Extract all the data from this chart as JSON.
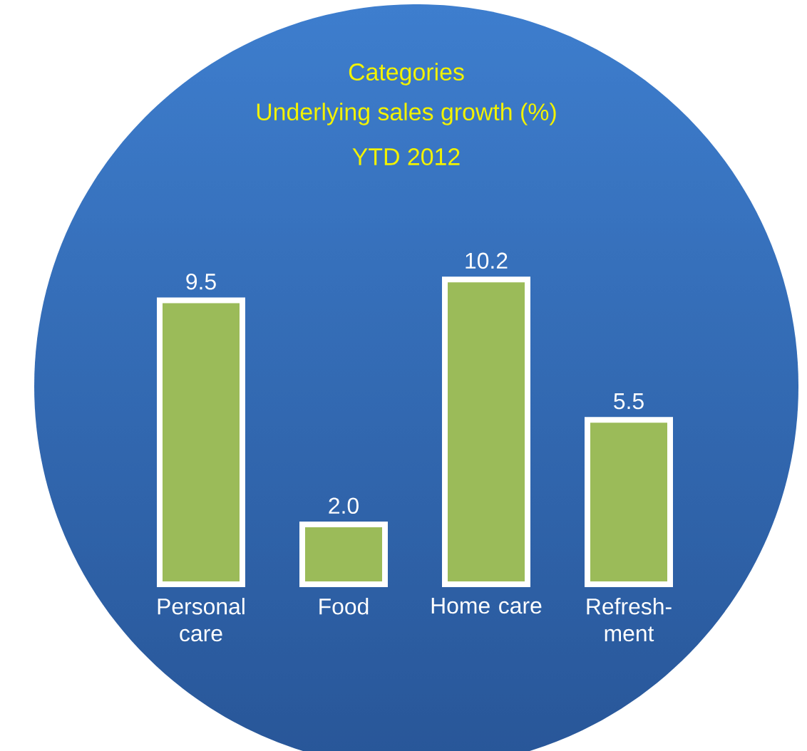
{
  "chart_data": {
    "type": "bar",
    "title": "Categories",
    "subtitle": "Underlying sales growth (%)",
    "annotations": [
      "YTD 2012"
    ],
    "categories": [
      "Personal care",
      "Food",
      "Home care",
      "Refresh-ment"
    ],
    "values": [
      9.5,
      2.0,
      10.2,
      5.5
    ],
    "value_labels": [
      "9.5",
      "2.0",
      "10.2",
      "5.5"
    ],
    "color": "#9bbb59"
  }
}
